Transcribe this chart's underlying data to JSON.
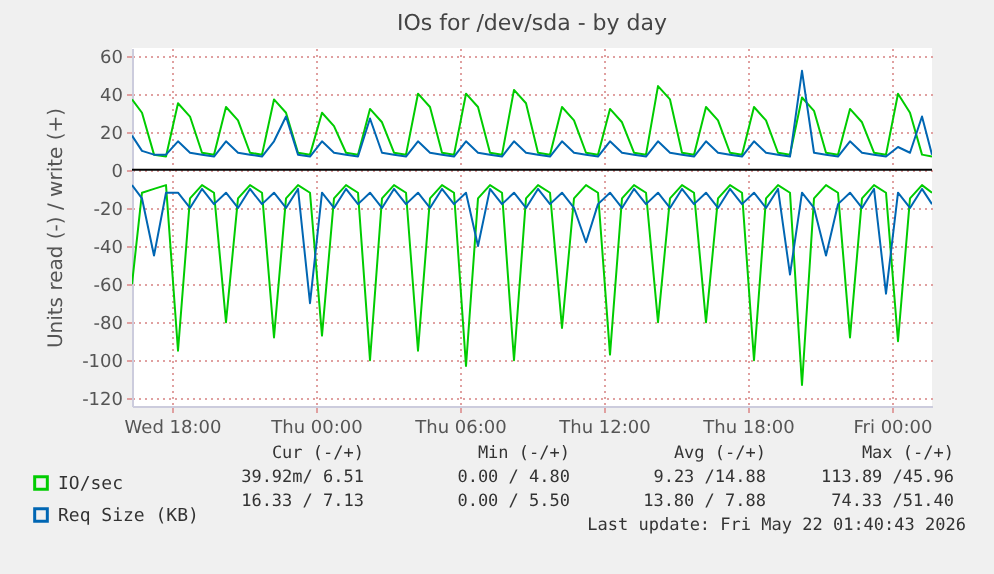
{
  "chart_data": {
    "type": "line",
    "title": "IOs for /dev/sda - by day",
    "ylabel": "Units read (-) / write (+)",
    "x": [
      "2026-05-20T16:20",
      "2026-05-20T16:45",
      "2026-05-20T17:15",
      "2026-05-20T17:45",
      "2026-05-20T18:15",
      "2026-05-20T18:45",
      "2026-05-20T19:15",
      "2026-05-20T19:45",
      "2026-05-20T20:15",
      "2026-05-20T20:45",
      "2026-05-20T21:15",
      "2026-05-20T21:45",
      "2026-05-20T22:15",
      "2026-05-20T22:45",
      "2026-05-20T23:15",
      "2026-05-20T23:45",
      "2026-05-21T00:15",
      "2026-05-21T00:45",
      "2026-05-21T01:15",
      "2026-05-21T01:45",
      "2026-05-21T02:15",
      "2026-05-21T02:45",
      "2026-05-21T03:15",
      "2026-05-21T03:45",
      "2026-05-21T04:15",
      "2026-05-21T04:45",
      "2026-05-21T05:15",
      "2026-05-21T05:45",
      "2026-05-21T06:15",
      "2026-05-21T06:45",
      "2026-05-21T07:15",
      "2026-05-21T07:45",
      "2026-05-21T08:15",
      "2026-05-21T08:45",
      "2026-05-21T09:15",
      "2026-05-21T09:45",
      "2026-05-21T10:15",
      "2026-05-21T10:45",
      "2026-05-21T11:15",
      "2026-05-21T11:45",
      "2026-05-21T12:15",
      "2026-05-21T12:45",
      "2026-05-21T13:15",
      "2026-05-21T13:45",
      "2026-05-21T14:15",
      "2026-05-21T14:45",
      "2026-05-21T15:15",
      "2026-05-21T15:45",
      "2026-05-21T16:15",
      "2026-05-21T16:45",
      "2026-05-21T17:15",
      "2026-05-21T17:45",
      "2026-05-21T18:15",
      "2026-05-21T18:45",
      "2026-05-21T19:15",
      "2026-05-21T19:45",
      "2026-05-21T20:15",
      "2026-05-21T20:45",
      "2026-05-21T21:15",
      "2026-05-21T21:45",
      "2026-05-21T22:15",
      "2026-05-21T22:45",
      "2026-05-21T23:15",
      "2026-05-21T23:45",
      "2026-05-22T00:15",
      "2026-05-22T00:45",
      "2026-05-22T01:15",
      "2026-05-22T01:40"
    ],
    "series": [
      {
        "name": "IO/sec",
        "color": "#00cc00",
        "values": [
          37,
          30,
          8,
          7,
          35,
          28,
          9,
          8,
          33,
          26,
          9,
          8,
          37,
          30,
          9,
          8,
          30,
          23,
          9,
          8,
          32,
          25,
          9,
          8,
          40,
          33,
          9,
          8,
          40,
          33,
          9,
          8,
          42,
          35,
          9,
          8,
          33,
          26,
          9,
          8,
          32,
          25,
          9,
          8,
          44,
          37,
          9,
          8,
          33,
          26,
          9,
          8,
          33,
          26,
          9,
          8,
          38,
          31,
          9,
          8,
          32,
          25,
          9,
          8,
          40,
          30,
          8,
          7
        ]
      },
      {
        "color": "#00cc00",
        "values": [
          -60,
          -12,
          -10,
          -8,
          -95,
          -15,
          -8,
          -12,
          -80,
          -15,
          -8,
          -12,
          -88,
          -15,
          -8,
          -12,
          -87,
          -15,
          -8,
          -12,
          -100,
          -15,
          -8,
          -12,
          -95,
          -15,
          -8,
          -12,
          -103,
          -15,
          -8,
          -12,
          -100,
          -15,
          -8,
          -12,
          -83,
          -15,
          -8,
          -12,
          -97,
          -15,
          -8,
          -12,
          -80,
          -15,
          -8,
          -12,
          -80,
          -15,
          -8,
          -12,
          -100,
          -15,
          -8,
          -12,
          -113,
          -15,
          -8,
          -12,
          -88,
          -15,
          -8,
          -12,
          -90,
          -15,
          -8,
          -12
        ]
      },
      {
        "name": "Req Size (KB)",
        "color": "#0066b3",
        "values": [
          18,
          10,
          8,
          8,
          15,
          9,
          8,
          7,
          15,
          9,
          8,
          7,
          15,
          28,
          8,
          7,
          15,
          9,
          8,
          7,
          27,
          9,
          8,
          7,
          15,
          9,
          8,
          7,
          15,
          9,
          8,
          7,
          15,
          9,
          8,
          7,
          15,
          9,
          8,
          7,
          15,
          9,
          8,
          7,
          15,
          9,
          8,
          7,
          15,
          9,
          8,
          7,
          15,
          9,
          8,
          7,
          52,
          9,
          8,
          7,
          15,
          9,
          8,
          7,
          12,
          9,
          28,
          8
        ]
      },
      {
        "color": "#0066b3",
        "values": [
          -8,
          -15,
          -45,
          -12,
          -12,
          -20,
          -10,
          -18,
          -12,
          -20,
          -10,
          -18,
          -12,
          -20,
          -10,
          -70,
          -12,
          -20,
          -10,
          -18,
          -12,
          -20,
          -10,
          -18,
          -12,
          -20,
          -10,
          -18,
          -12,
          -40,
          -10,
          -18,
          -12,
          -20,
          -10,
          -18,
          -12,
          -20,
          -38,
          -18,
          -12,
          -20,
          -10,
          -18,
          -12,
          -20,
          -10,
          -18,
          -12,
          -20,
          -10,
          -18,
          -12,
          -20,
          -10,
          -55,
          -12,
          -20,
          -45,
          -18,
          -12,
          -20,
          -10,
          -65,
          -12,
          -20,
          -10,
          -18
        ]
      }
    ],
    "xlim": [
      "2026-05-20T16:20",
      "2026-05-22T01:40"
    ],
    "xticks": [
      {
        "value": "2026-05-20T18:00",
        "label": "Wed 18:00"
      },
      {
        "value": "2026-05-21T00:00",
        "label": "Thu 00:00"
      },
      {
        "value": "2026-05-21T06:00",
        "label": "Thu 06:00"
      },
      {
        "value": "2026-05-21T12:00",
        "label": "Thu 12:00"
      },
      {
        "value": "2026-05-21T18:00",
        "label": "Thu 18:00"
      },
      {
        "value": "2026-05-22T00:00",
        "label": "Fri 00:00"
      }
    ],
    "ylim": [
      -124,
      64
    ],
    "yticks": [
      -120,
      -100,
      -80,
      -60,
      -40,
      -20,
      0,
      20,
      40,
      60
    ],
    "ref_lines": [
      {
        "axis": "y",
        "value": 0,
        "color": "#000000"
      }
    ],
    "grid": true,
    "legend": "bottom left",
    "annotations": [
      "Cur (-/+)",
      "Min (-/+)",
      "Avg (-/+)",
      "Max (-/+)",
      "39.92m/ 6.51",
      "0.00 / 4.80",
      "9.23 /14.88",
      "113.89 /45.96",
      "16.33 / 7.13",
      "0.00 / 5.50",
      "13.80 / 7.88",
      "74.33 /51.40",
      "Last update: Fri May 22 01:40:43 2026"
    ]
  }
}
